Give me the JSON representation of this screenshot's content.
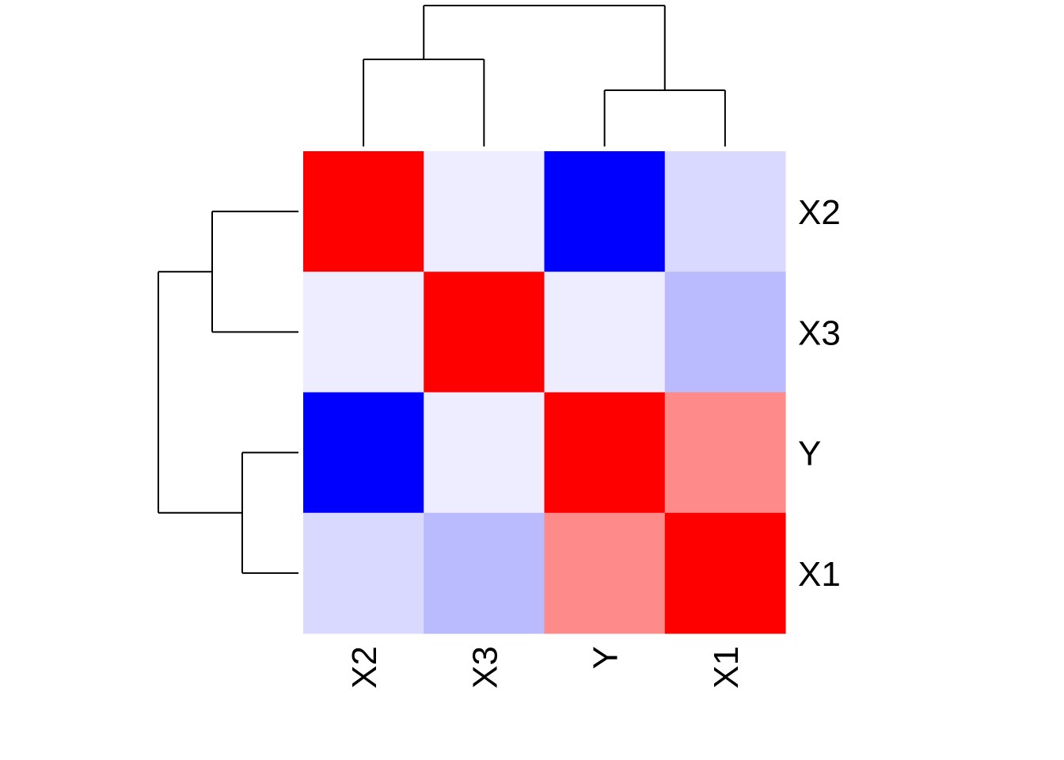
{
  "chart_data": {
    "type": "heatmap",
    "title": "",
    "xlabel": "",
    "ylabel": "",
    "row_labels": [
      "X2",
      "X3",
      "Y",
      "X1"
    ],
    "col_labels": [
      "X2",
      "X3",
      "Y",
      "X1"
    ],
    "values": [
      [
        1.0,
        -0.07,
        -1.0,
        -0.15
      ],
      [
        -0.07,
        1.0,
        -0.07,
        -0.27
      ],
      [
        -1.0,
        -0.07,
        1.0,
        0.46
      ],
      [
        -0.15,
        -0.27,
        0.46,
        1.0
      ]
    ],
    "value_range": [
      -1,
      1
    ],
    "colors": {
      "low": "#0000ff",
      "mid": "#ffffff",
      "high": "#ff0000"
    },
    "row_dendrogram": "((X2,X3),(Y,X1))",
    "col_dendrogram": "((X2,X3),(Y,X1))",
    "legend": "none"
  }
}
